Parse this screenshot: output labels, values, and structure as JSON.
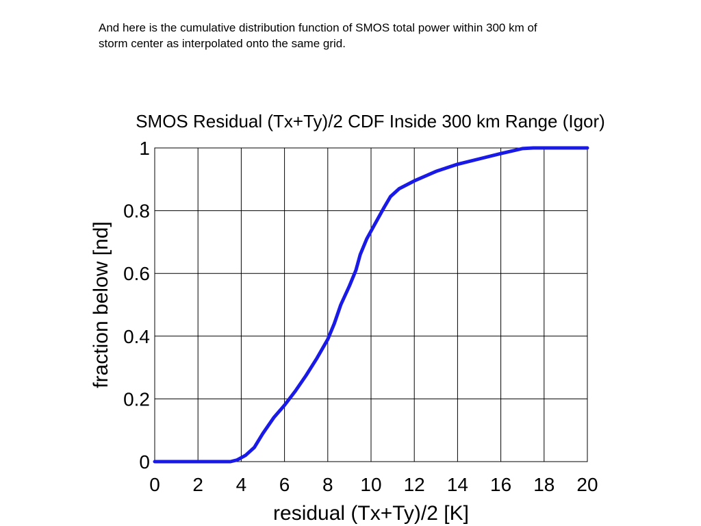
{
  "caption": {
    "line1": "And here is the cumulative distribution function of SMOS total power within 300 km of",
    "line2": "storm center as interpolated onto the same grid."
  },
  "chart_data": {
    "type": "line",
    "title": "SMOS Residual (Tx+Ty)/2 CDF Inside 300 km Range (Igor)",
    "xlabel": "residual (Tx+Ty)/2 [K]",
    "ylabel": "fraction below [nd]",
    "xlim": [
      0,
      20
    ],
    "ylim": [
      0,
      1
    ],
    "xticks": [
      "0",
      "2",
      "4",
      "6",
      "8",
      "10",
      "12",
      "14",
      "16",
      "18",
      "20"
    ],
    "yticks": [
      "0",
      "0.2",
      "0.4",
      "0.6",
      "0.8",
      "1"
    ],
    "grid": true,
    "line_color": "#1a1ae6",
    "series": [
      {
        "x": [
          0,
          1,
          2,
          3,
          3.5,
          3.8,
          4.2,
          4.6,
          5.0,
          5.5,
          6.0,
          6.5,
          7.0,
          7.5,
          8.0,
          8.3,
          8.6,
          9.0,
          9.3,
          9.5,
          9.8,
          10.2,
          10.6,
          10.9,
          11.3,
          12.0,
          13.0,
          14.0,
          15.0,
          16.0,
          16.5,
          17.0,
          17.5,
          18.0,
          19.0,
          20.0
        ],
        "y": [
          0,
          0,
          0,
          0,
          0,
          0.005,
          0.02,
          0.045,
          0.09,
          0.14,
          0.18,
          0.225,
          0.275,
          0.33,
          0.39,
          0.44,
          0.5,
          0.56,
          0.61,
          0.66,
          0.71,
          0.76,
          0.81,
          0.845,
          0.87,
          0.895,
          0.925,
          0.948,
          0.965,
          0.982,
          0.99,
          0.998,
          1.0,
          1.0,
          1.0,
          1.0
        ]
      }
    ]
  }
}
